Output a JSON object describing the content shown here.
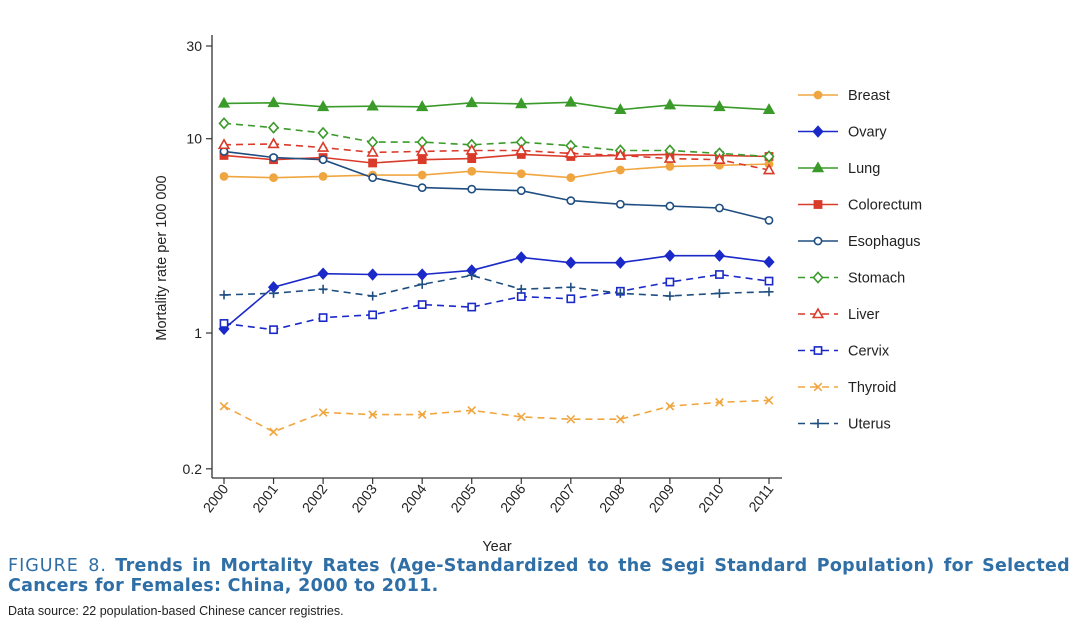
{
  "chart_data": {
    "type": "line",
    "xlabel": "Year",
    "ylabel": "Mortality rate per 100 000",
    "y_scale": "log",
    "ylim": [
      0.2,
      30
    ],
    "y_ticks": [
      30,
      10,
      1,
      0.2
    ],
    "y_tick_labels": [
      "30",
      "10",
      "1",
      "0.2"
    ],
    "x": [
      "2000",
      "2001",
      "2002",
      "2003",
      "2004",
      "2005",
      "2006",
      "2007",
      "2008",
      "2009",
      "2010",
      "2011"
    ],
    "legend_position": "right",
    "grid": false,
    "series": [
      {
        "name": "Breast",
        "color": "#f0a640",
        "marker": "circle-filled",
        "dash": "solid",
        "values": [
          6.4,
          6.3,
          6.4,
          6.5,
          6.5,
          6.8,
          6.6,
          6.3,
          6.9,
          7.2,
          7.3,
          7.4
        ]
      },
      {
        "name": "Ovary",
        "color": "#1a29c8",
        "marker": "diamond-filled",
        "dash": "solid",
        "values": [
          1.05,
          1.72,
          2.02,
          2.0,
          2.0,
          2.1,
          2.45,
          2.3,
          2.3,
          2.5,
          2.5,
          2.32
        ]
      },
      {
        "name": "Lung",
        "color": "#3a9a2a",
        "marker": "triangle-filled",
        "dash": "solid",
        "values": [
          15.2,
          15.3,
          14.6,
          14.7,
          14.6,
          15.3,
          15.1,
          15.4,
          14.1,
          14.9,
          14.6,
          14.1
        ]
      },
      {
        "name": "Colorectum",
        "color": "#d93a2a",
        "marker": "square-filled",
        "dash": "solid",
        "values": [
          8.2,
          7.8,
          8.0,
          7.5,
          7.8,
          7.9,
          8.3,
          8.1,
          8.2,
          8.3,
          8.2,
          8.1
        ]
      },
      {
        "name": "Esophagus",
        "color": "#1f4e80",
        "marker": "circle-open",
        "dash": "solid",
        "values": [
          8.6,
          8.0,
          7.8,
          6.3,
          5.6,
          5.5,
          5.4,
          4.8,
          4.6,
          4.5,
          4.4,
          3.8
        ]
      },
      {
        "name": "Stomach",
        "color": "#3a9a2a",
        "marker": "diamond-open",
        "dash": "dashed",
        "values": [
          12.0,
          11.4,
          10.7,
          9.6,
          9.6,
          9.3,
          9.6,
          9.2,
          8.7,
          8.7,
          8.4,
          8.1
        ]
      },
      {
        "name": "Liver",
        "color": "#d93a2a",
        "marker": "triangle-open",
        "dash": "dashed",
        "values": [
          9.3,
          9.4,
          9.0,
          8.5,
          8.6,
          8.7,
          8.7,
          8.4,
          8.2,
          7.9,
          7.8,
          6.9
        ]
      },
      {
        "name": "Cervix",
        "color": "#1a29c8",
        "marker": "square-open",
        "dash": "dashed",
        "values": [
          1.12,
          1.04,
          1.2,
          1.24,
          1.4,
          1.36,
          1.54,
          1.5,
          1.64,
          1.83,
          2.0,
          1.85
        ]
      },
      {
        "name": "Thyroid",
        "color": "#f0a640",
        "marker": "x",
        "dash": "dashed",
        "values": [
          0.42,
          0.31,
          0.39,
          0.38,
          0.38,
          0.4,
          0.37,
          0.36,
          0.36,
          0.42,
          0.44,
          0.45
        ]
      },
      {
        "name": "Uterus",
        "color": "#1f4e80",
        "marker": "plus",
        "dash": "dashed",
        "values": [
          1.57,
          1.6,
          1.68,
          1.55,
          1.78,
          1.98,
          1.68,
          1.72,
          1.6,
          1.55,
          1.6,
          1.63
        ]
      }
    ]
  },
  "caption": {
    "label": "FIGURE 8.",
    "title": "Trends in Mortality Rates (Age-Standardized to the Segi Standard Population) for Selected Cancers for Females: China, 2000 to 2011.",
    "source": "Data source: 22 population-based Chinese cancer registries."
  }
}
